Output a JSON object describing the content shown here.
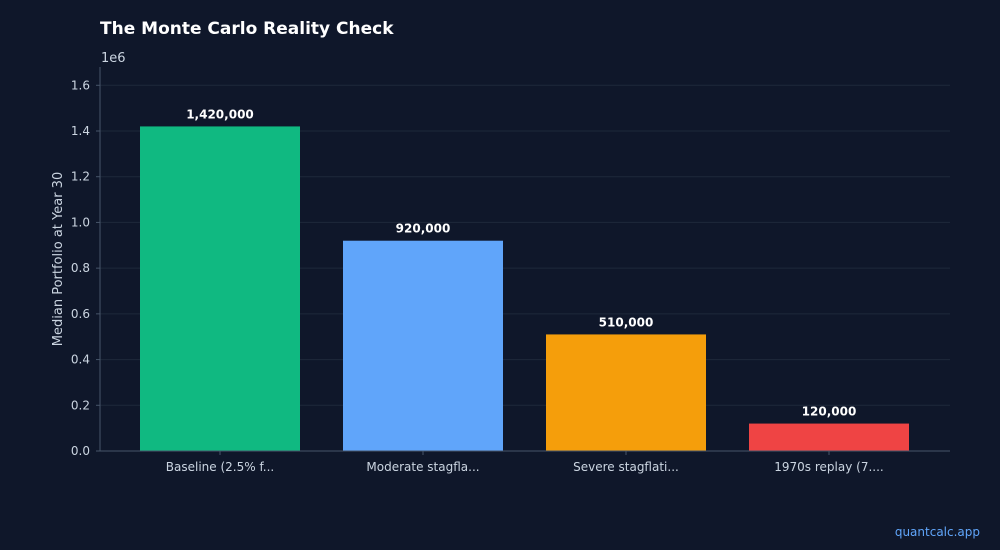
{
  "chart_data": {
    "type": "bar",
    "title": "The Monte Carlo Reality Check",
    "xlabel": "",
    "ylabel": "Median Portfolio at Year 30",
    "y_offset_label": "1e6",
    "categories": [
      "Baseline (2.5% f...",
      "Moderate stagfla...",
      "Severe stagflati...",
      "1970s replay (7...."
    ],
    "values": [
      1420000,
      920000,
      510000,
      120000
    ],
    "data_labels": [
      "1,420,000",
      "920,000",
      "510,000",
      "120,000"
    ],
    "colors": [
      "#10b981",
      "#60a5fa",
      "#f59e0b",
      "#ef4444"
    ],
    "ylim": [
      0,
      1680000
    ],
    "yticks": [
      0,
      200000,
      400000,
      600000,
      800000,
      1000000,
      1200000,
      1400000,
      1600000
    ],
    "ytick_labels": [
      "0.0",
      "0.2",
      "0.4",
      "0.6",
      "0.8",
      "1.0",
      "1.2",
      "1.4",
      "1.6"
    ],
    "grid": true,
    "background_color": "#0f172a",
    "axis_color": "#475569",
    "grid_color": "#1e293b"
  },
  "watermark": "quantcalc.app"
}
